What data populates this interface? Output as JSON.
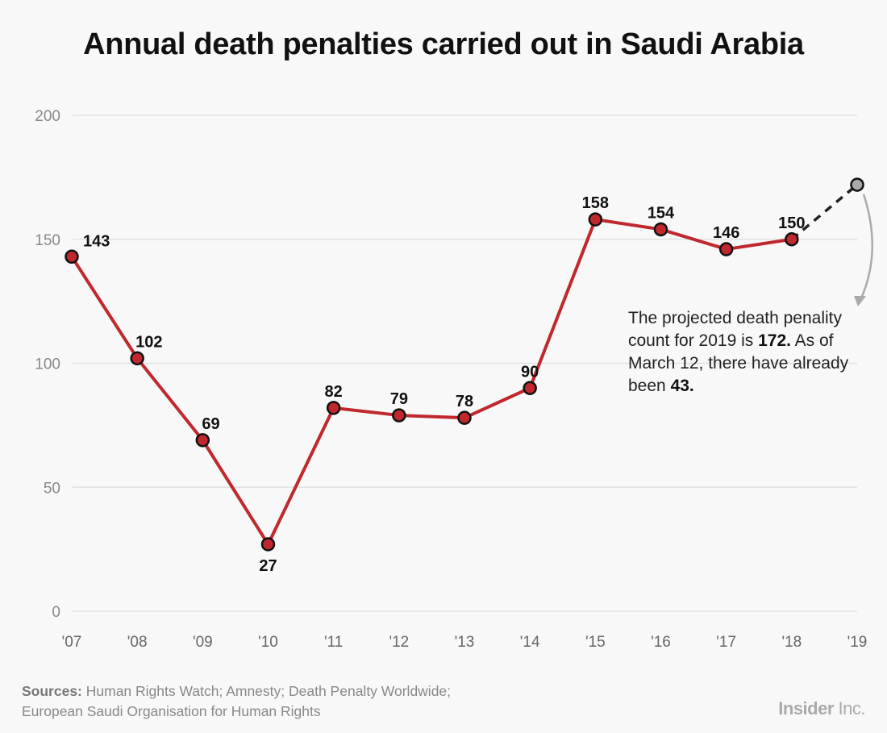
{
  "chart_data": {
    "type": "line",
    "title": "Annual death penalties carried out in Saudi Arabia",
    "xlabel": "",
    "ylabel": "",
    "categories": [
      "'07",
      "'08",
      "'09",
      "'10",
      "'11",
      "'12",
      "'13",
      "'14",
      "'15",
      "'16",
      "'17",
      "'18",
      "'19"
    ],
    "series": [
      {
        "values": [
          143,
          102,
          69,
          27,
          82,
          79,
          78,
          90,
          158,
          154,
          146,
          150,
          null
        ],
        "color": "#c0282d"
      },
      {
        "projected": true,
        "values": [
          null,
          null,
          null,
          null,
          null,
          null,
          null,
          null,
          null,
          null,
          null,
          150,
          172
        ],
        "color": "#999999"
      }
    ],
    "data_labels": [
      "143",
      "102",
      "69",
      "27",
      "82",
      "79",
      "78",
      "90",
      "158",
      "154",
      "146",
      "150"
    ],
    "ylim": [
      0,
      200
    ],
    "yticks": [
      0,
      50,
      100,
      150,
      200
    ],
    "ytick_labels": [
      "0",
      "50",
      "100",
      "150",
      "200"
    ],
    "grid": true,
    "annotation": {
      "text_1": "The projected death penality count for 2019 is ",
      "bold_1": "172.",
      "text_2": " As of March 12, there have already been ",
      "bold_2": "43."
    }
  },
  "footer": {
    "sources_label": "Sources:",
    "sources_line1": " Human Rights Watch; Amnesty; Death Penalty Worldwide;",
    "sources_line2": "European Saudi Organisation for Human Rights",
    "logo_bold": "Insider",
    "logo_rest": "Inc."
  }
}
